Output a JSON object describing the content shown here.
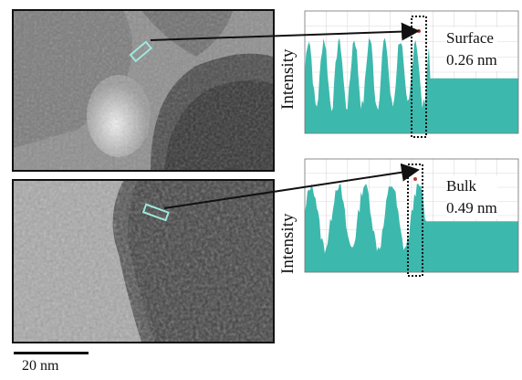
{
  "panels": [
    {
      "id": "surface",
      "label": "Surface",
      "value": "0.26 nm",
      "ylabel": "Intensity"
    },
    {
      "id": "bulk",
      "label": "Bulk",
      "value": "0.49 nm",
      "ylabel": "Intensity"
    }
  ],
  "scale_bar": {
    "label": "20 nm"
  },
  "colors": {
    "profile_fill": "#3db8ad",
    "frame": "#111111",
    "grid": "#d9d9d9"
  }
}
